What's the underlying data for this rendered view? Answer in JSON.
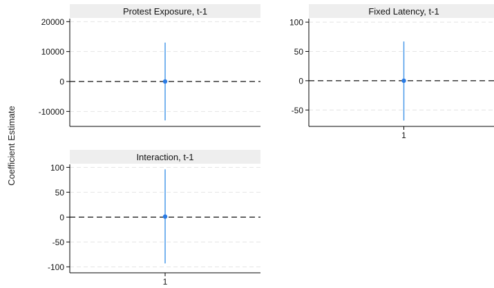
{
  "figure": {
    "ylabel": "Coefficient Estimate"
  },
  "colors": {
    "marker": "#2a7be4",
    "ci": "#4a9ae8",
    "zero_line": "#111111",
    "grid": "#e4e4e4",
    "strip": "#eeeeee",
    "axis": "#000000"
  },
  "chart_data": [
    {
      "type": "scatter",
      "title": "Protest Exposure, t-1",
      "x": [
        1
      ],
      "y": [
        0
      ],
      "ci_low": [
        -13000
      ],
      "ci_high": [
        13000
      ],
      "yticks": [
        20000,
        10000,
        0,
        -10000
      ],
      "yticklabels": [
        "20000",
        "10000",
        "0",
        "-10000"
      ],
      "ylim": [
        -15000,
        21000
      ],
      "xticks": [],
      "reference_line": 0,
      "grid": true
    },
    {
      "type": "scatter",
      "title": "Fixed Latency, t-1",
      "x": [
        1
      ],
      "y": [
        0
      ],
      "ci_low": [
        -68
      ],
      "ci_high": [
        67
      ],
      "yticks": [
        100,
        50,
        0,
        -50
      ],
      "yticklabels": [
        "100",
        "50",
        "0",
        "-50"
      ],
      "ylim": [
        -78,
        106
      ],
      "xticks": [
        1
      ],
      "xticklabels": [
        "1"
      ],
      "reference_line": 0,
      "grid": true
    },
    {
      "type": "scatter",
      "title": "Interaction, t-1",
      "x": [
        1
      ],
      "y": [
        1
      ],
      "ci_low": [
        -93
      ],
      "ci_high": [
        96
      ],
      "yticks": [
        100,
        50,
        0,
        -50,
        -100
      ],
      "yticklabels": [
        "100",
        "50",
        "0",
        "-50",
        "-100"
      ],
      "ylim": [
        -112,
        106
      ],
      "xticks": [
        1
      ],
      "xticklabels": [
        "1"
      ],
      "reference_line": 0,
      "grid": true
    }
  ]
}
